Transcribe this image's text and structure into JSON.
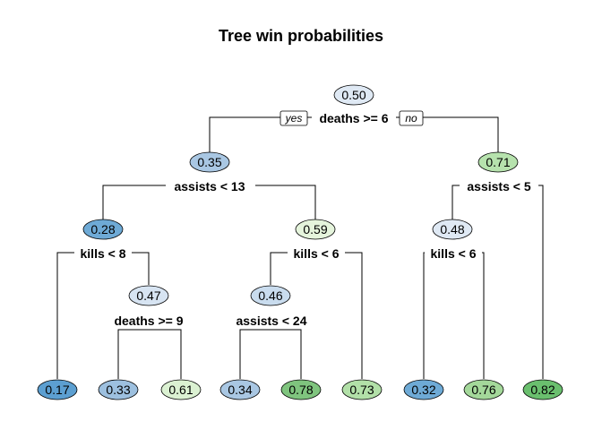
{
  "title": "Tree win probabilities",
  "edge_labels": {
    "yes": "yes",
    "no": "no"
  },
  "nodes": [
    {
      "id": "n1",
      "value": "0.50",
      "fill": "#dfe9f4"
    },
    {
      "id": "n2",
      "value": "0.35",
      "fill": "#a9c7e3"
    },
    {
      "id": "n3",
      "value": "0.71",
      "fill": "#b6e2ad"
    },
    {
      "id": "n4",
      "value": "0.28",
      "fill": "#6eaad6"
    },
    {
      "id": "n5",
      "value": "0.59",
      "fill": "#e5f4dc"
    },
    {
      "id": "n6",
      "value": "0.48",
      "fill": "#dfe9f4"
    },
    {
      "id": "n7",
      "value": "0.47",
      "fill": "#d7e4f2"
    },
    {
      "id": "n8",
      "value": "0.46",
      "fill": "#c9dcee"
    },
    {
      "id": "l1",
      "value": "0.17",
      "fill": "#5c9fd1"
    },
    {
      "id": "l2",
      "value": "0.33",
      "fill": "#9dc0df"
    },
    {
      "id": "l3",
      "value": "0.61",
      "fill": "#dbf1d2"
    },
    {
      "id": "l4",
      "value": "0.34",
      "fill": "#a9c7e3"
    },
    {
      "id": "l5",
      "value": "0.78",
      "fill": "#7fc47e"
    },
    {
      "id": "l6",
      "value": "0.73",
      "fill": "#b2e0a8"
    },
    {
      "id": "l7",
      "value": "0.32",
      "fill": "#6eaad6"
    },
    {
      "id": "l8",
      "value": "0.76",
      "fill": "#a4d89a"
    },
    {
      "id": "l9",
      "value": "0.82",
      "fill": "#6abf6e"
    }
  ],
  "splits": [
    {
      "id": "s1",
      "label": "deaths >= 6"
    },
    {
      "id": "s2",
      "label": "assists < 13"
    },
    {
      "id": "s3",
      "label": "assists < 5"
    },
    {
      "id": "s4",
      "label": "kills < 8"
    },
    {
      "id": "s5",
      "label": "kills < 6"
    },
    {
      "id": "s6",
      "label": "kills < 6"
    },
    {
      "id": "s7",
      "label": "deaths >= 9"
    },
    {
      "id": "s8",
      "label": "assists < 24"
    }
  ]
}
